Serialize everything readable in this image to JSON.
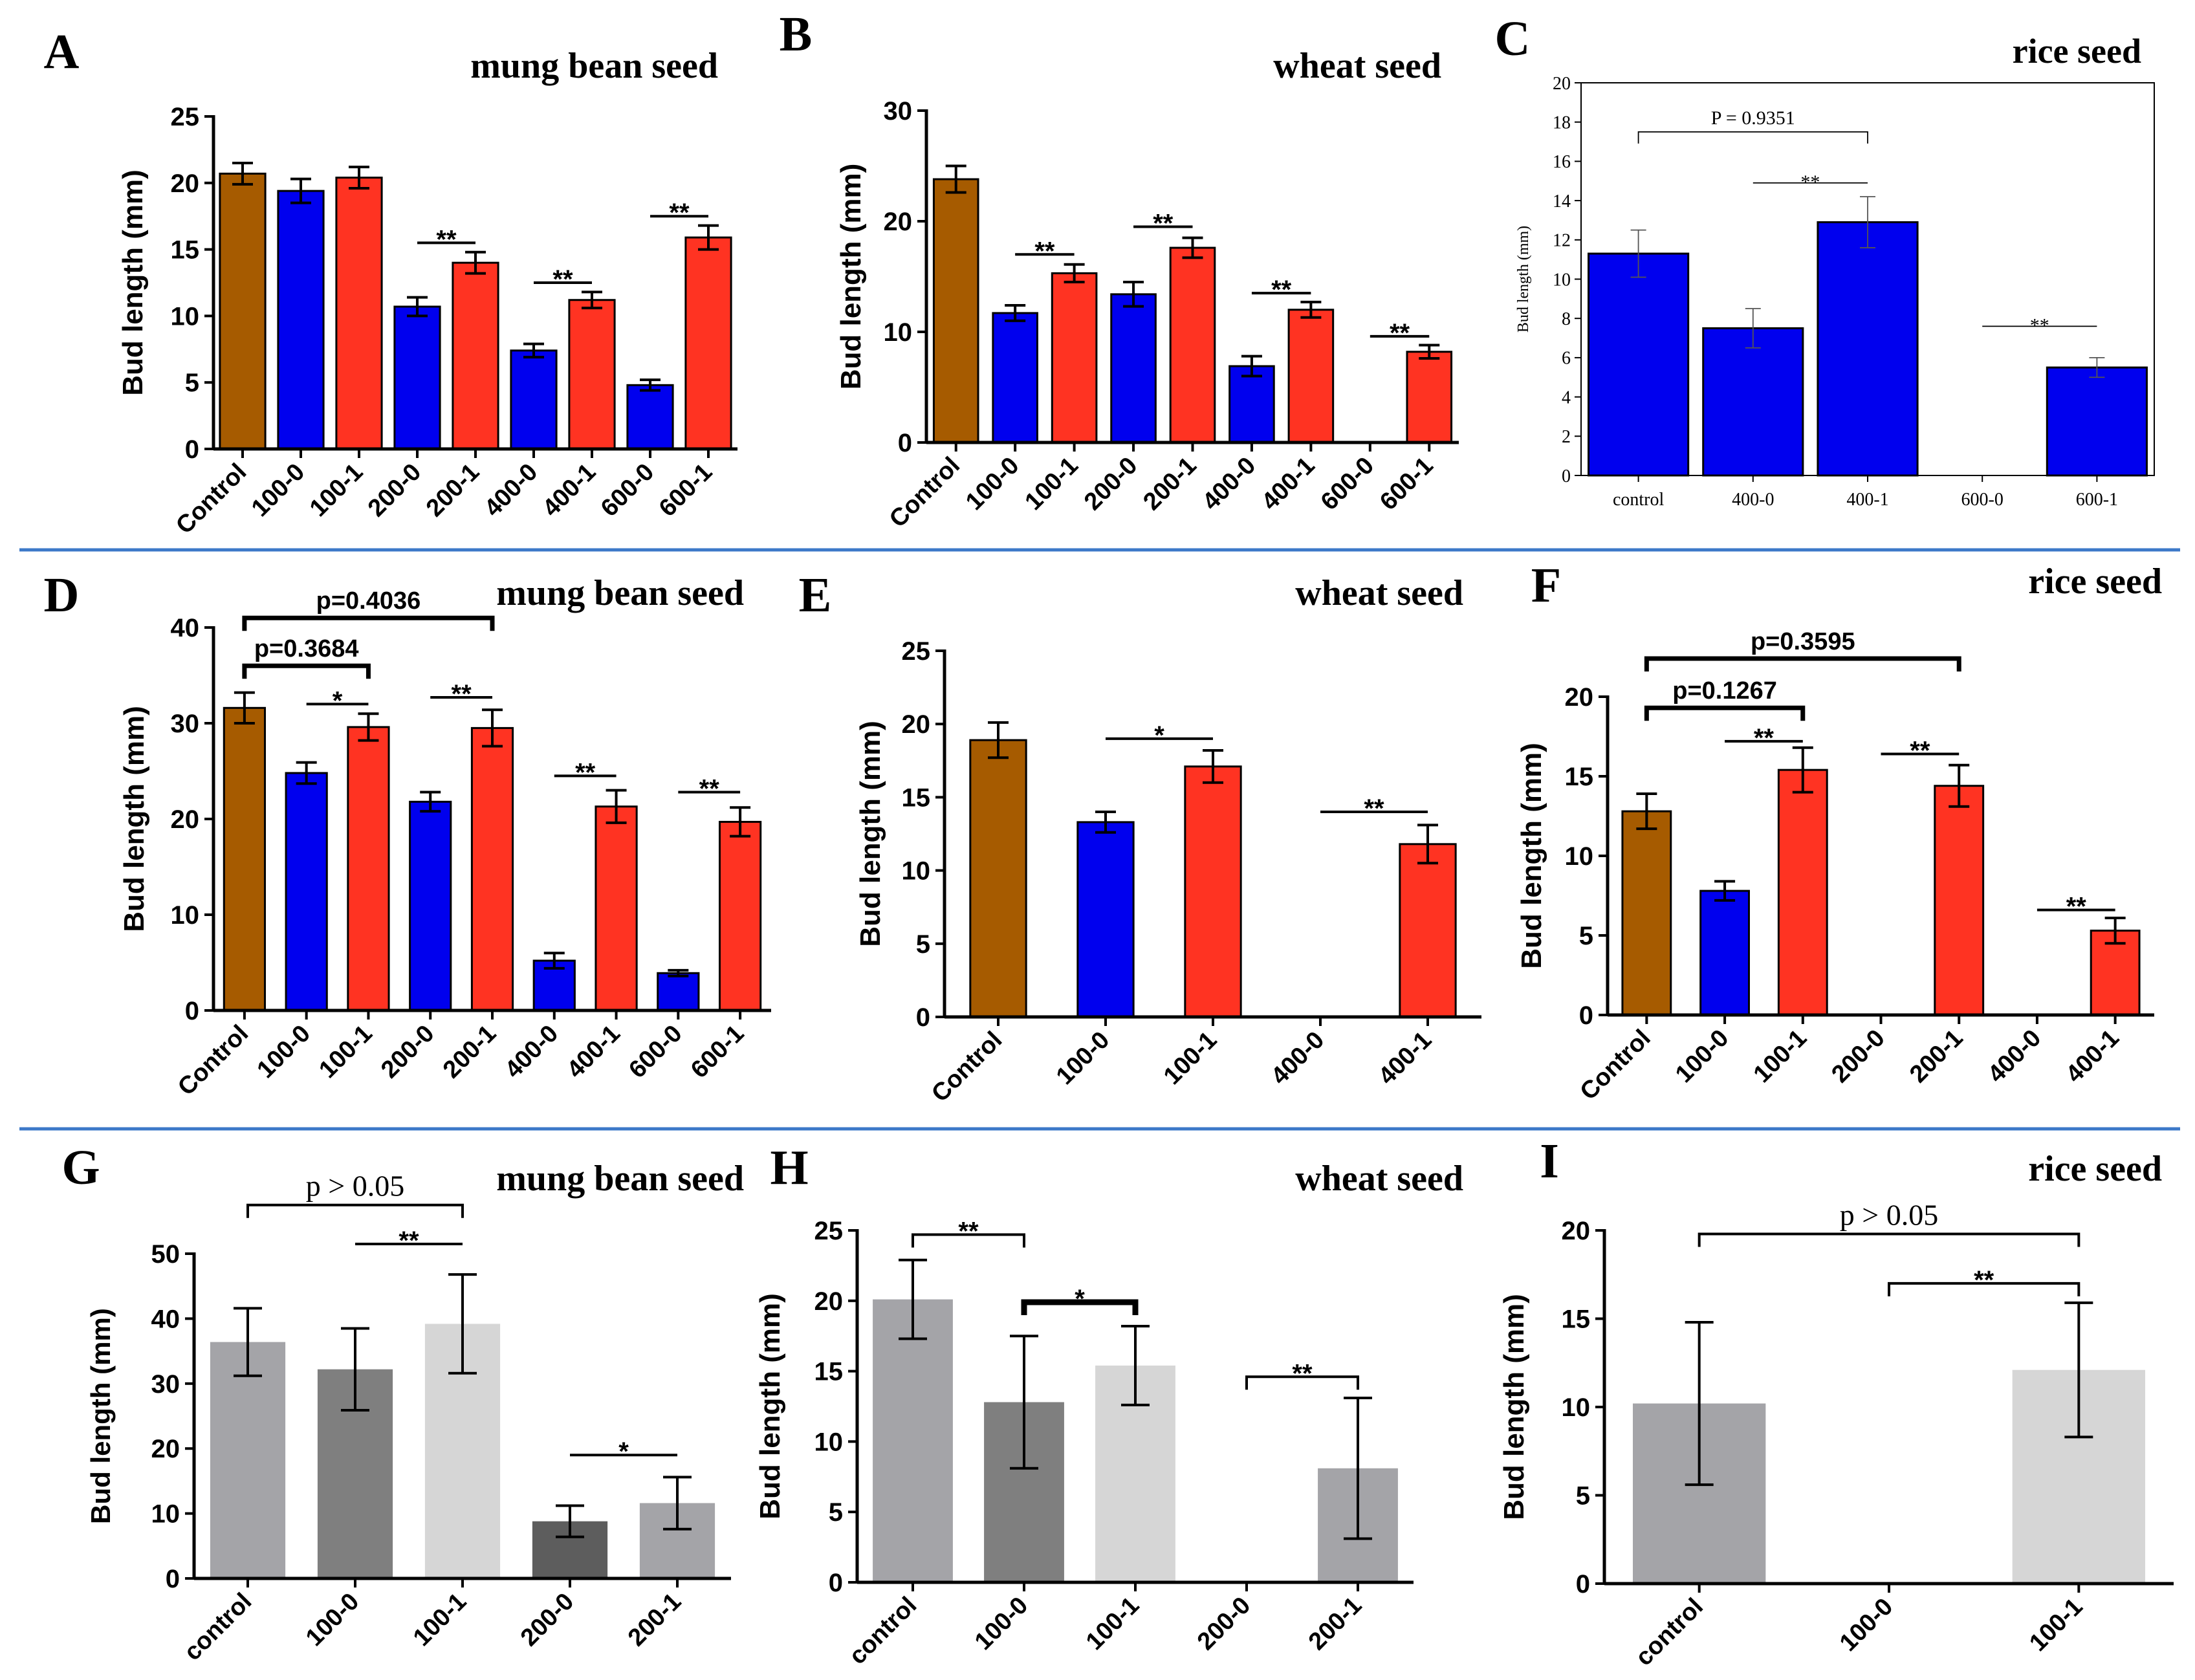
{
  "colors": {
    "control": "#a65b00",
    "blue": "#0000ee",
    "red": "#ff3322",
    "gray_light": "#a4a4a8",
    "gray_dark": "#7f7f7f",
    "gray_pale": "#d6d6d6",
    "gray_mid": "#5d5d5d",
    "divider": "#3c78c8"
  },
  "chart_data": [
    {
      "id": "A",
      "type": "bar",
      "panel_letter": "A",
      "title": "mung bean seed",
      "ylabel": "Bud length (mm)",
      "ylim": [
        0,
        25
      ],
      "yticks": [
        0,
        5,
        10,
        15,
        20,
        25
      ],
      "categories": [
        "Control",
        "100-0",
        "100-1",
        "200-0",
        "200-1",
        "400-0",
        "400-1",
        "600-0",
        "600-1"
      ],
      "values": [
        20.7,
        19.4,
        20.4,
        10.7,
        14.0,
        7.4,
        11.2,
        4.8,
        15.9
      ],
      "errors": [
        0.8,
        0.9,
        0.8,
        0.7,
        0.8,
        0.5,
        0.6,
        0.4,
        0.9
      ],
      "bar_colors": [
        "control",
        "blue",
        "red",
        "blue",
        "red",
        "blue",
        "red",
        "blue",
        "red"
      ],
      "annotations": [
        {
          "from": 3,
          "to": 4,
          "text": "**",
          "y": 15.5
        },
        {
          "from": 5,
          "to": 6,
          "text": "**",
          "y": 12.5
        },
        {
          "from": 7,
          "to": 8,
          "text": "**",
          "y": 17.5
        }
      ]
    },
    {
      "id": "B",
      "type": "bar",
      "panel_letter": "B",
      "title": "wheat seed",
      "ylabel": "Bud length (mm)",
      "ylim": [
        0,
        30
      ],
      "yticks": [
        0,
        10,
        20,
        30
      ],
      "categories": [
        "Control",
        "100-0",
        "100-1",
        "200-0",
        "200-1",
        "400-0",
        "400-1",
        "600-0",
        "600-1"
      ],
      "values": [
        23.8,
        11.7,
        15.3,
        13.4,
        17.6,
        6.9,
        12.0,
        null,
        8.2
      ],
      "errors": [
        1.2,
        0.7,
        0.8,
        1.1,
        0.9,
        0.9,
        0.7,
        null,
        0.6
      ],
      "bar_colors": [
        "control",
        "blue",
        "red",
        "blue",
        "red",
        "blue",
        "red",
        "blue",
        "red"
      ],
      "annotations": [
        {
          "from": 1,
          "to": 2,
          "text": "**",
          "y": 17.0
        },
        {
          "from": 3,
          "to": 4,
          "text": "**",
          "y": 19.5
        },
        {
          "from": 5,
          "to": 6,
          "text": "**",
          "y": 13.5
        },
        {
          "from": 7,
          "to": 8,
          "text": "**",
          "y": 9.6
        }
      ]
    },
    {
      "id": "C",
      "type": "bar",
      "panel_letter": "C",
      "title": "rice seed",
      "style": "origin",
      "ylabel": "Bud length (mm)",
      "ylim": [
        0,
        20
      ],
      "yticks": [
        0,
        2,
        4,
        6,
        8,
        10,
        12,
        14,
        16,
        18,
        20
      ],
      "categories": [
        "control",
        "400-0",
        "400-1",
        "600-0",
        "600-1"
      ],
      "values": [
        11.3,
        7.5,
        12.9,
        null,
        5.5
      ],
      "errors": [
        1.2,
        1.0,
        1.3,
        null,
        0.5
      ],
      "bar_colors": [
        "blue",
        "blue",
        "blue",
        "blue",
        "blue"
      ],
      "annotations": [
        {
          "from": 0,
          "to": 2,
          "text": "P = 0.9351",
          "y": 17.5,
          "bracket": true
        },
        {
          "from": 1,
          "to": 2,
          "text": "**",
          "y": 14.9
        },
        {
          "from": 3,
          "to": 4,
          "text": "**",
          "y": 7.6
        }
      ]
    },
    {
      "id": "D",
      "type": "bar",
      "panel_letter": "D",
      "title": "mung bean seed",
      "ylabel": "Bud length (mm)",
      "ylim": [
        0,
        40
      ],
      "yticks": [
        0,
        10,
        20,
        30,
        40
      ],
      "categories": [
        "Control",
        "100-0",
        "100-1",
        "200-0",
        "200-1",
        "400-0",
        "400-1",
        "600-0",
        "600-1"
      ],
      "values": [
        31.6,
        24.8,
        29.6,
        21.8,
        29.5,
        5.2,
        21.3,
        3.9,
        19.7
      ],
      "errors": [
        1.6,
        1.1,
        1.4,
        1.0,
        1.9,
        0.8,
        1.7,
        0.3,
        1.5
      ],
      "bar_colors": [
        "control",
        "blue",
        "red",
        "blue",
        "red",
        "blue",
        "red",
        "blue",
        "red"
      ],
      "annotations": [
        {
          "from": 0,
          "to": 4,
          "text": "p=0.4036",
          "y": 41.0,
          "bracket": true,
          "bold": true
        },
        {
          "from": 0,
          "to": 2,
          "text": "p=0.3684",
          "y": 36.0,
          "bracket": true,
          "bold": true
        },
        {
          "from": 1,
          "to": 2,
          "text": "*",
          "y": 32.0
        },
        {
          "from": 3,
          "to": 4,
          "text": "**",
          "y": 32.7
        },
        {
          "from": 5,
          "to": 6,
          "text": "**",
          "y": 24.5
        },
        {
          "from": 7,
          "to": 8,
          "text": "**",
          "y": 22.8
        }
      ]
    },
    {
      "id": "E",
      "type": "bar",
      "panel_letter": "E",
      "title": "wheat seed",
      "ylabel": "Bud length (mm)",
      "ylim": [
        0,
        25
      ],
      "yticks": [
        0,
        5,
        10,
        15,
        20,
        25
      ],
      "categories": [
        "Control",
        "100-0",
        "100-1",
        "400-0",
        "400-1"
      ],
      "values": [
        18.9,
        13.3,
        17.1,
        null,
        11.8
      ],
      "errors": [
        1.2,
        0.7,
        1.1,
        null,
        1.3
      ],
      "bar_colors": [
        "control",
        "blue",
        "red",
        "blue",
        "red"
      ],
      "annotations": [
        {
          "from": 1,
          "to": 2,
          "text": "*",
          "y": 19.0
        },
        {
          "from": 3,
          "to": 4,
          "text": "**",
          "y": 14.0
        }
      ]
    },
    {
      "id": "F",
      "type": "bar",
      "panel_letter": "F",
      "title": "rice seed",
      "ylabel": "Bud length (mm)",
      "ylim": [
        0,
        20
      ],
      "yticks": [
        0,
        5,
        10,
        15,
        20
      ],
      "categories": [
        "Control",
        "100-0",
        "100-1",
        "200-0",
        "200-1",
        "400-0",
        "400-1"
      ],
      "values": [
        12.8,
        7.8,
        15.4,
        null,
        14.4,
        null,
        5.3
      ],
      "errors": [
        1.1,
        0.6,
        1.4,
        null,
        1.3,
        null,
        0.8
      ],
      "bar_colors": [
        "control",
        "blue",
        "red",
        "blue",
        "red",
        "blue",
        "red"
      ],
      "annotations": [
        {
          "from": 0,
          "to": 4,
          "text": "p=0.3595",
          "y": 22.4,
          "bracket": true,
          "bold": true
        },
        {
          "from": 0,
          "to": 2,
          "text": "p=0.1267",
          "y": 19.3,
          "bracket": true,
          "bold": true
        },
        {
          "from": 1,
          "to": 2,
          "text": "**",
          "y": 17.2
        },
        {
          "from": 3,
          "to": 4,
          "text": "**",
          "y": 16.4
        },
        {
          "from": 5,
          "to": 6,
          "text": "**",
          "y": 6.6
        }
      ]
    },
    {
      "id": "G",
      "type": "bar",
      "panel_letter": "G",
      "title": "mung bean seed",
      "ylabel": "Bud length (mm)",
      "ylim": [
        0,
        50
      ],
      "yticks": [
        0,
        10,
        20,
        30,
        40,
        50
      ],
      "categories": [
        "control",
        "100-0",
        "100-1",
        "200-0",
        "200-1"
      ],
      "values": [
        36.4,
        32.2,
        39.2,
        8.8,
        11.6
      ],
      "errors": [
        5.2,
        6.3,
        7.6,
        2.4,
        4.0
      ],
      "bar_colors": [
        "gray_light",
        "gray_dark",
        "gray_pale",
        "gray_mid",
        "gray_light"
      ],
      "annotations": [
        {
          "from": 0,
          "to": 2,
          "text": "p > 0.05",
          "y": 57.5,
          "bracket": true,
          "serif": true
        },
        {
          "from": 1,
          "to": 2,
          "text": "**",
          "y": 51.5
        },
        {
          "from": 3,
          "to": 4,
          "text": "*",
          "y": 19.0
        }
      ]
    },
    {
      "id": "H",
      "type": "bar",
      "panel_letter": "H",
      "title": "wheat seed",
      "ylabel": "Bud length (mm)",
      "ylim": [
        0,
        25
      ],
      "yticks": [
        0,
        5,
        10,
        15,
        20,
        25
      ],
      "categories": [
        "control",
        "100-0",
        "100-1",
        "200-0",
        "200-1"
      ],
      "values": [
        20.1,
        12.8,
        15.4,
        null,
        8.1
      ],
      "errors": [
        2.8,
        4.7,
        2.8,
        null,
        5.0
      ],
      "bar_colors": [
        "gray_light",
        "gray_dark",
        "gray_pale",
        "gray_mid",
        "gray_light"
      ],
      "annotations": [
        {
          "from": 0,
          "to": 1,
          "text": "**",
          "y": 24.7,
          "bracket": true
        },
        {
          "from": 1,
          "to": 2,
          "text": "*",
          "y": 19.9,
          "bracket": true,
          "thick": true
        },
        {
          "from": 3,
          "to": 4,
          "text": "**",
          "y": 14.6,
          "bracket": true
        }
      ]
    },
    {
      "id": "I",
      "type": "bar",
      "panel_letter": "I",
      "title": "rice seed",
      "ylabel": "Bud length (mm)",
      "ylim": [
        0,
        20
      ],
      "yticks": [
        0,
        5,
        10,
        15,
        20
      ],
      "categories": [
        "control",
        "100-0",
        "100-1"
      ],
      "values": [
        10.2,
        null,
        12.1
      ],
      "errors": [
        4.6,
        null,
        3.8
      ],
      "bar_colors": [
        "gray_light",
        "gray_dark",
        "gray_pale"
      ],
      "annotations": [
        {
          "from": 0,
          "to": 2,
          "text": "p > 0.05",
          "y": 19.8,
          "bracket": true,
          "serif": true
        },
        {
          "from": 1,
          "to": 2,
          "text": "**",
          "y": 17.0,
          "bracket": true
        }
      ]
    }
  ]
}
